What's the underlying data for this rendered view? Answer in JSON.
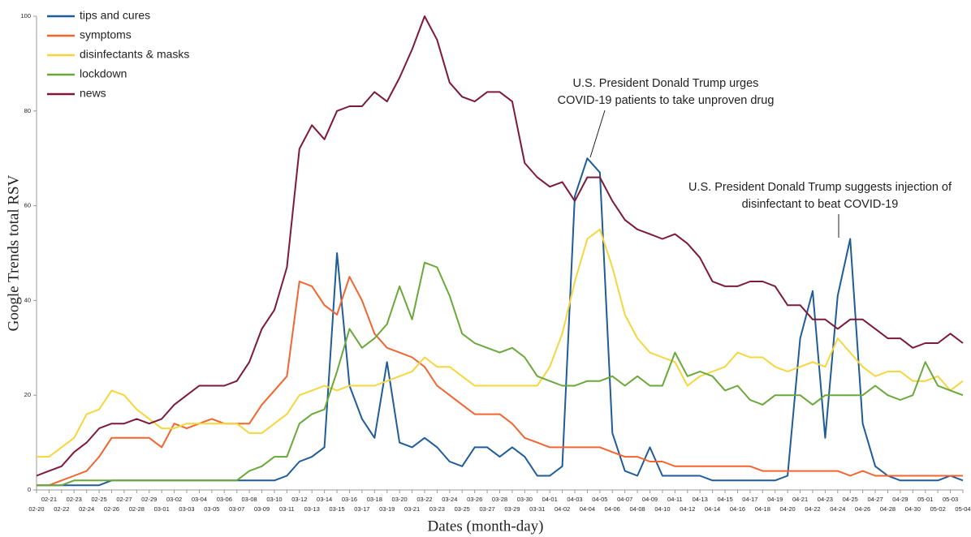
{
  "chart_data": {
    "type": "line",
    "x_label": "Dates (month-day)",
    "y_label": "Google Trends total RSV",
    "categories": [
      "02-20",
      "02-21",
      "02-22",
      "02-23",
      "02-24",
      "02-25",
      "02-26",
      "02-27",
      "02-28",
      "02-29",
      "03-01",
      "03-02",
      "03-03",
      "03-04",
      "03-05",
      "03-06",
      "03-07",
      "03-08",
      "03-09",
      "03-10",
      "03-11",
      "03-12",
      "03-13",
      "03-14",
      "03-15",
      "03-16",
      "03-17",
      "03-18",
      "03-19",
      "03-20",
      "03-21",
      "03-22",
      "03-23",
      "03-24",
      "03-25",
      "03-26",
      "03-27",
      "03-28",
      "03-29",
      "03-30",
      "03-31",
      "04-01",
      "04-02",
      "04-03",
      "04-04",
      "04-05",
      "04-06",
      "04-07",
      "04-08",
      "04-09",
      "04-10",
      "04-11",
      "04-12",
      "04-13",
      "04-14",
      "04-15",
      "04-16",
      "04-17",
      "04-18",
      "04-19",
      "04-20",
      "04-21",
      "04-22",
      "04-23",
      "04-24",
      "04-25",
      "04-26",
      "04-27",
      "04-28",
      "04-29",
      "04-30",
      "05-01",
      "05-02",
      "05-03",
      "05-04"
    ],
    "series": [
      {
        "name": "tips and cures",
        "color": "#1f5c99",
        "values": [
          1,
          1,
          1,
          1,
          1,
          1,
          2,
          2,
          2,
          2,
          2,
          2,
          2,
          2,
          2,
          2,
          2,
          2,
          2,
          2,
          3,
          6,
          7,
          9,
          50,
          22,
          15,
          11,
          27,
          10,
          9,
          11,
          9,
          6,
          5,
          9,
          9,
          7,
          9,
          7,
          3,
          3,
          5,
          62,
          70,
          67,
          12,
          4,
          3,
          9,
          3,
          3,
          3,
          3,
          2,
          2,
          2,
          2,
          2,
          2,
          3,
          32,
          42,
          11,
          41,
          53,
          14,
          5,
          3,
          2,
          2,
          2,
          2,
          3,
          2
        ]
      },
      {
        "name": "symptoms",
        "color": "#f26430",
        "values": [
          1,
          1,
          2,
          3,
          4,
          7,
          11,
          11,
          11,
          11,
          9,
          14,
          13,
          14,
          15,
          14,
          14,
          14,
          18,
          21,
          24,
          44,
          43,
          39,
          37,
          45,
          40,
          33,
          30,
          29,
          28,
          26,
          22,
          20,
          18,
          16,
          16,
          16,
          14,
          11,
          10,
          9,
          9,
          9,
          9,
          9,
          8,
          7,
          7,
          6,
          6,
          5,
          5,
          5,
          5,
          5,
          5,
          5,
          4,
          4,
          4,
          4,
          4,
          4,
          4,
          3,
          4,
          3,
          3,
          3,
          3,
          3,
          3,
          3,
          3
        ]
      },
      {
        "name": "disinfectants & masks",
        "color": "#f5d63d",
        "values": [
          7,
          7,
          9,
          11,
          16,
          17,
          21,
          20,
          17,
          15,
          13,
          13,
          14,
          14,
          14,
          14,
          14,
          12,
          12,
          14,
          16,
          20,
          21,
          22,
          21,
          22,
          22,
          22,
          23,
          24,
          25,
          28,
          26,
          26,
          24,
          22,
          22,
          22,
          22,
          22,
          22,
          26,
          33,
          44,
          53,
          55,
          47,
          37,
          32,
          29,
          28,
          27,
          22,
          24,
          25,
          26,
          29,
          28,
          28,
          26,
          25,
          26,
          27,
          26,
          32,
          29,
          26,
          24,
          25,
          25,
          23,
          23,
          24,
          21,
          23
        ]
      },
      {
        "name": "lockdown",
        "color": "#6aa83a",
        "values": [
          1,
          1,
          1,
          2,
          2,
          2,
          2,
          2,
          2,
          2,
          2,
          2,
          2,
          2,
          2,
          2,
          2,
          4,
          5,
          7,
          7,
          14,
          16,
          17,
          25,
          34,
          30,
          32,
          35,
          43,
          36,
          48,
          47,
          41,
          33,
          31,
          30,
          29,
          30,
          28,
          24,
          23,
          22,
          22,
          23,
          23,
          24,
          22,
          24,
          22,
          22,
          29,
          24,
          25,
          24,
          21,
          22,
          19,
          18,
          20,
          20,
          20,
          18,
          20,
          20,
          20,
          20,
          22,
          20,
          19,
          20,
          27,
          22,
          21,
          20
        ]
      },
      {
        "name": "news",
        "color": "#7d1a3a",
        "values": [
          3,
          4,
          5,
          8,
          10,
          13,
          14,
          14,
          15,
          14,
          15,
          18,
          20,
          22,
          22,
          22,
          23,
          27,
          34,
          38,
          47,
          72,
          77,
          74,
          80,
          81,
          81,
          84,
          82,
          87,
          93,
          100,
          95,
          86,
          83,
          82,
          84,
          84,
          82,
          69,
          66,
          64,
          65,
          61,
          66,
          66,
          61,
          57,
          55,
          54,
          53,
          54,
          52,
          49,
          44,
          43,
          43,
          44,
          44,
          43,
          39,
          39,
          36,
          36,
          34,
          36,
          36,
          34,
          32,
          32,
          30,
          31,
          31,
          33,
          31
        ]
      }
    ],
    "ylim": [
      0,
      100
    ],
    "yticks": [
      0,
      20,
      40,
      60,
      80,
      100
    ],
    "legend": "upper left",
    "annotations": [
      {
        "lines": [
          "U.S. President Donald Trump urges",
          "COVID-19 patients to take unproven drug"
        ]
      },
      {
        "lines": [
          "U.S. President Donald Trump suggests injection of",
          "disinfectant to beat COVID-19"
        ]
      }
    ]
  }
}
